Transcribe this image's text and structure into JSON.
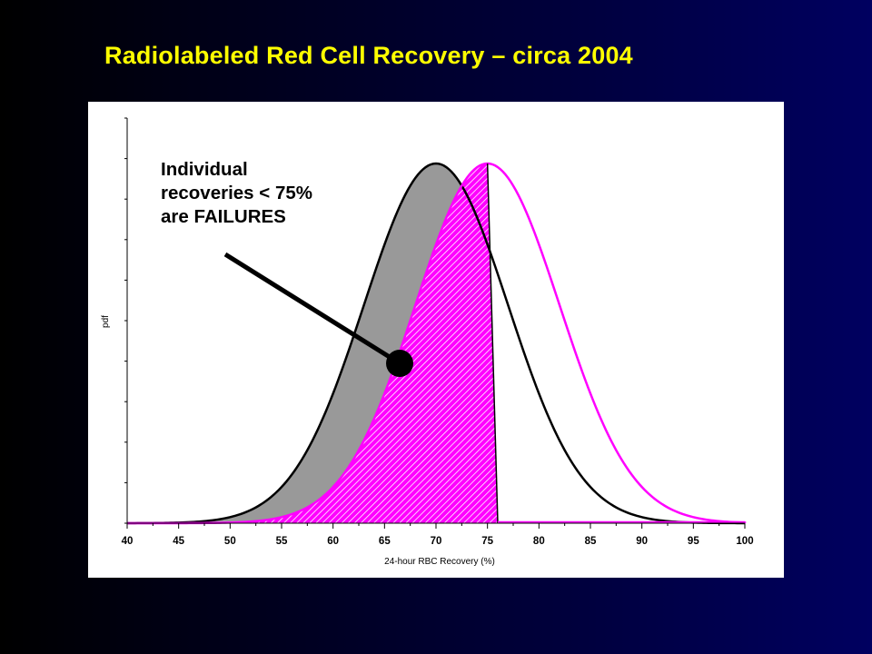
{
  "slide": {
    "title": "Radiolabeled Red Cell Recovery – circa 2004"
  },
  "chart_data": {
    "type": "area",
    "xlabel": "24-hour RBC Recovery (%)",
    "ylabel": "pdf",
    "xlim": [
      40,
      100
    ],
    "x_ticks": [
      "40",
      "45",
      "50",
      "55",
      "60",
      "65",
      "70",
      "75",
      "80",
      "85",
      "90",
      "95",
      "100"
    ],
    "grid": false,
    "series": [
      {
        "mean": 70,
        "sd": 7,
        "fill": "#999999",
        "stroke": "#000000"
      },
      {
        "mean": 75,
        "sd": 7,
        "fill": "hatched-magenta",
        "stroke": "#ff00ff"
      }
    ],
    "threshold_x": 75,
    "annotation": {
      "lines": [
        "Individual",
        "recoveries < 75%",
        "are FAILURES"
      ]
    },
    "colors": {
      "magenta": "#ff00ff",
      "gray": "#999999",
      "title": "#ffff00"
    }
  }
}
